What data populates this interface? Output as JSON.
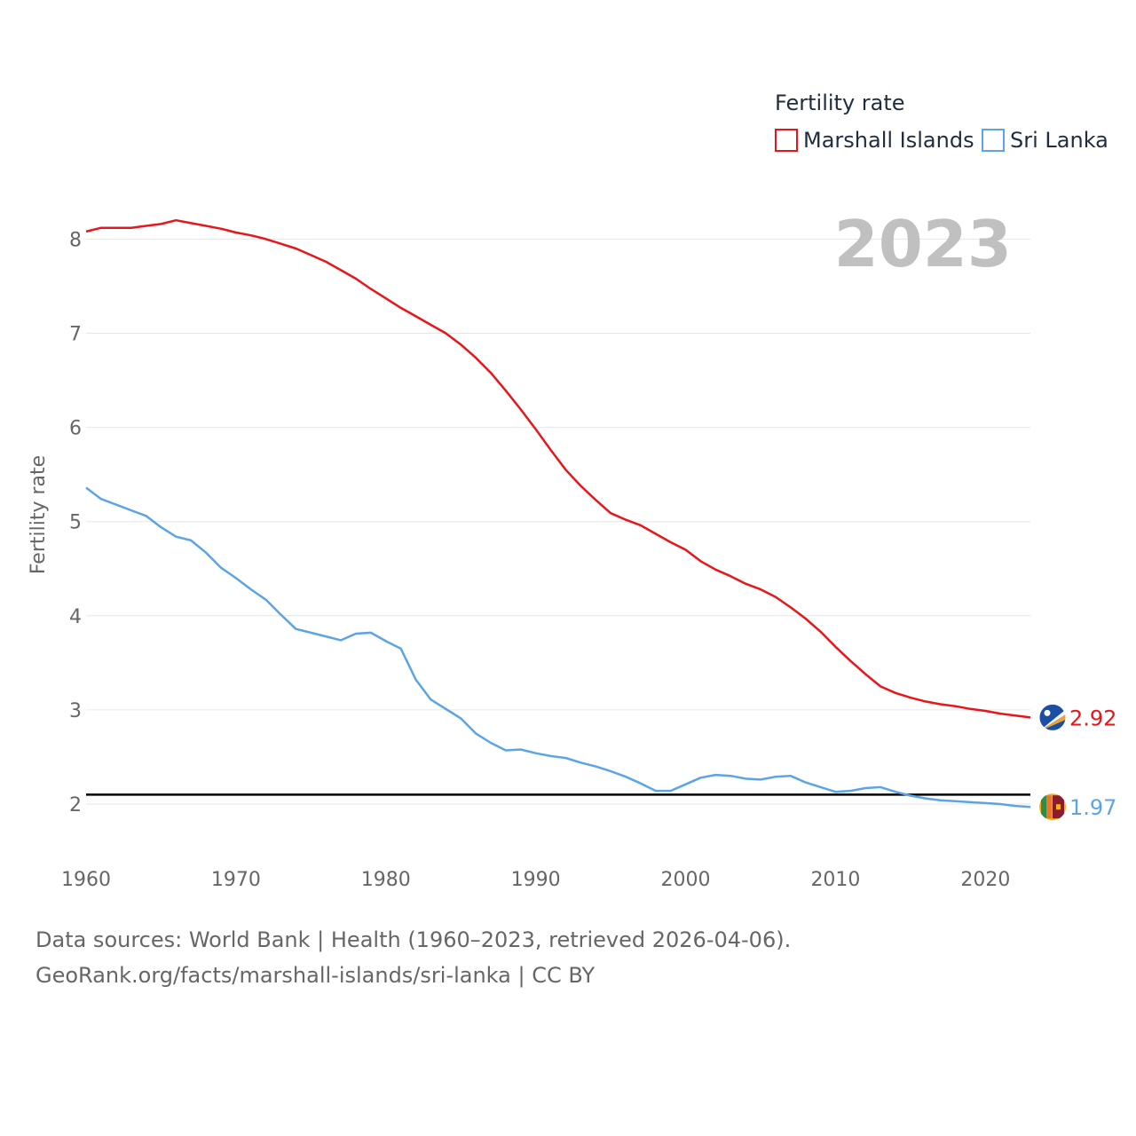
{
  "chart_data": {
    "type": "line",
    "title": "Fertility rate",
    "year_label": "2023",
    "ylabel": "Fertility rate",
    "xlabel": "",
    "xlim": [
      1960,
      2023
    ],
    "ylim": [
      1.5,
      8.6
    ],
    "yticks": [
      2,
      3,
      4,
      5,
      6,
      7,
      8
    ],
    "xticks": [
      1960,
      1970,
      1980,
      1990,
      2000,
      2010,
      2020
    ],
    "reference_line": 2.1,
    "x": [
      1960,
      1961,
      1962,
      1963,
      1964,
      1965,
      1966,
      1967,
      1968,
      1969,
      1970,
      1971,
      1972,
      1973,
      1974,
      1975,
      1976,
      1977,
      1978,
      1979,
      1980,
      1981,
      1982,
      1983,
      1984,
      1985,
      1986,
      1987,
      1988,
      1989,
      1990,
      1991,
      1992,
      1993,
      1994,
      1995,
      1996,
      1997,
      1998,
      1999,
      2000,
      2001,
      2002,
      2003,
      2004,
      2005,
      2006,
      2007,
      2008,
      2009,
      2010,
      2011,
      2012,
      2013,
      2014,
      2015,
      2016,
      2017,
      2018,
      2019,
      2020,
      2021,
      2022,
      2023
    ],
    "series": [
      {
        "name": "Marshall Islands",
        "color": "#e8161a",
        "end_label": "2.92",
        "values": [
          8.08,
          8.12,
          8.12,
          8.12,
          8.14,
          8.16,
          8.2,
          8.17,
          8.14,
          8.11,
          8.07,
          8.04,
          8.0,
          7.95,
          7.9,
          7.83,
          7.76,
          7.67,
          7.58,
          7.47,
          7.37,
          7.27,
          7.18,
          7.09,
          7.0,
          6.88,
          6.74,
          6.58,
          6.39,
          6.19,
          5.98,
          5.76,
          5.55,
          5.38,
          5.23,
          5.09,
          5.02,
          4.96,
          4.87,
          4.78,
          4.7,
          4.58,
          4.49,
          4.42,
          4.34,
          4.28,
          4.2,
          4.09,
          3.97,
          3.83,
          3.67,
          3.52,
          3.38,
          3.25,
          3.18,
          3.13,
          3.09,
          3.06,
          3.04,
          3.01,
          2.99,
          2.96,
          2.94,
          2.92
        ]
      },
      {
        "name": "Sri Lanka",
        "color": "#5ba4e6",
        "end_label": "1.97",
        "values": [
          5.36,
          5.24,
          5.18,
          5.12,
          5.06,
          4.94,
          4.84,
          4.8,
          4.67,
          4.51,
          4.4,
          4.28,
          4.17,
          4.01,
          3.86,
          3.82,
          3.78,
          3.74,
          3.81,
          3.82,
          3.73,
          3.65,
          3.32,
          3.11,
          3.01,
          2.91,
          2.75,
          2.65,
          2.57,
          2.58,
          2.54,
          2.51,
          2.49,
          2.44,
          2.4,
          2.35,
          2.29,
          2.22,
          2.14,
          2.14,
          2.21,
          2.28,
          2.31,
          2.3,
          2.27,
          2.26,
          2.29,
          2.3,
          2.23,
          2.18,
          2.13,
          2.14,
          2.17,
          2.18,
          2.13,
          2.09,
          2.06,
          2.04,
          2.03,
          2.02,
          2.01,
          2.0,
          1.98,
          1.97
        ]
      }
    ]
  },
  "footer": {
    "sources": "Data sources: World Bank | Health (1960–2023, retrieved 2026-04-06).",
    "attribution": "GeoRank.org/facts/marshall-islands/sri-lanka | CC BY"
  },
  "icons": {
    "marshall_flag": "marshall-islands-flag-icon",
    "srilanka_flag": "sri-lanka-flag-icon"
  }
}
